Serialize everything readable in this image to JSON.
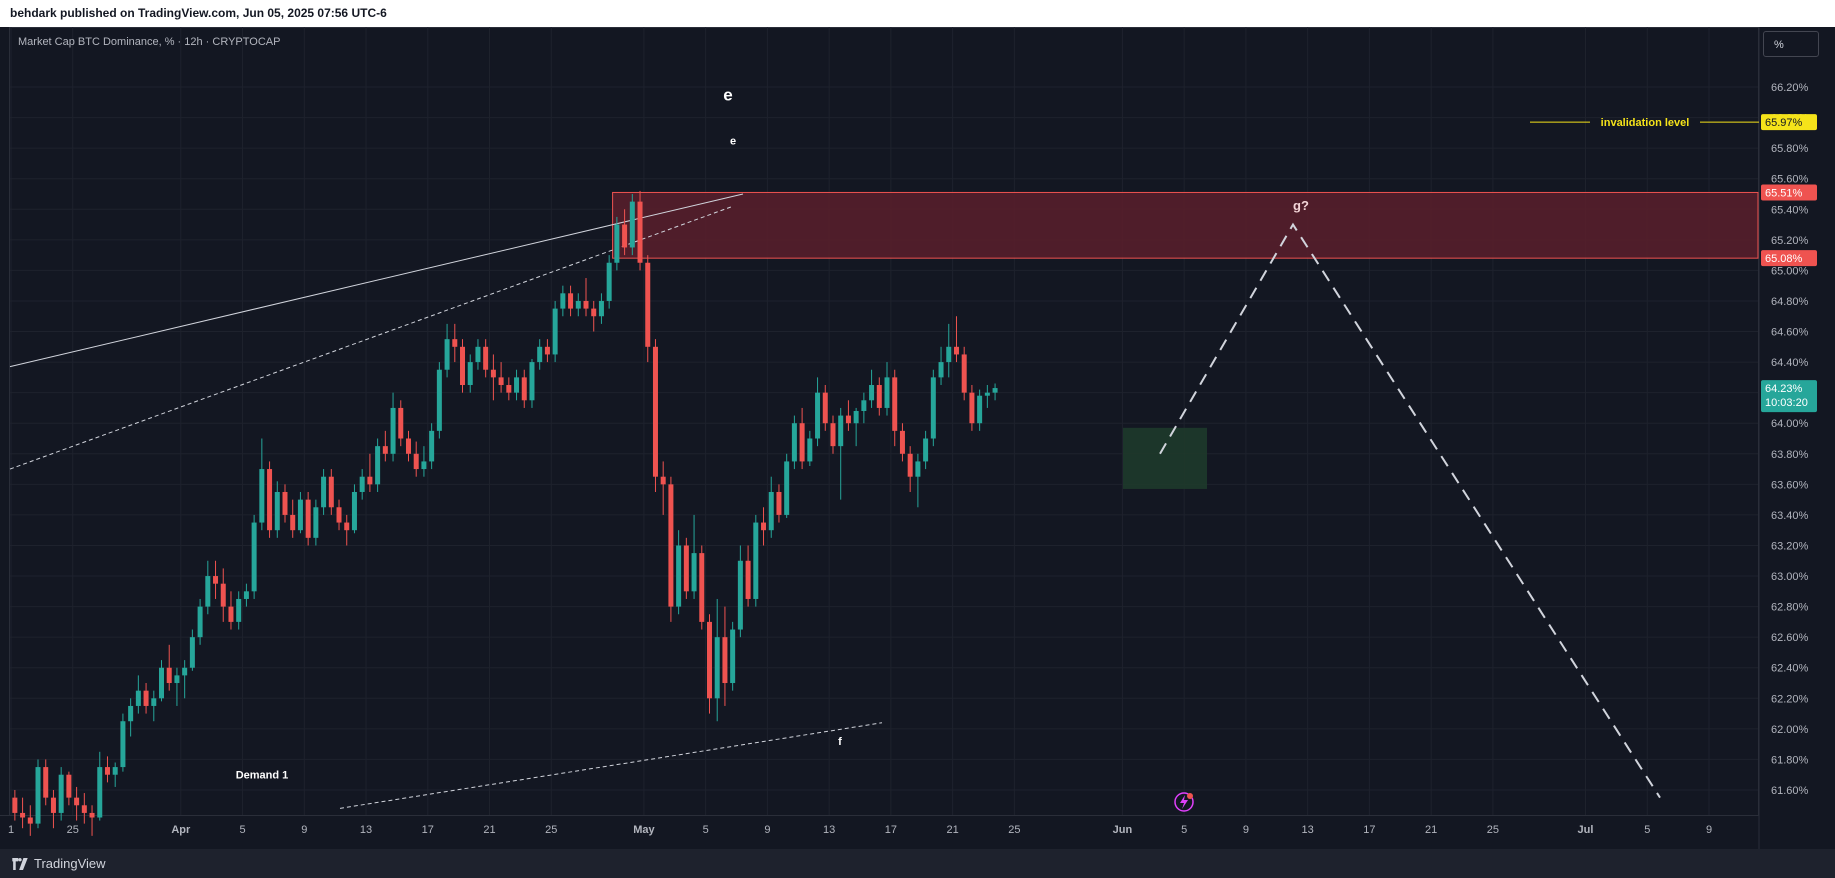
{
  "header": {
    "publish_text": "behdark published on TradingView.com, Jun 05, 2025 07:56 UTC-6"
  },
  "footer": {
    "brand": "TradingView",
    "logo_icon": "tradingview-logo-icon"
  },
  "toolbar": {
    "unit_button": "%"
  },
  "colors": {
    "background": "#131722",
    "up": "#26a69a",
    "down": "#ef5350",
    "supply_zone": "#5b1f2c",
    "demand_zone": "#1e3a2b",
    "invalidation": "#f5e31a",
    "grid": "#1e222d"
  },
  "chart_data": {
    "type": "candlestick",
    "title": "Market Cap BTC Dominance, % · 12h · CRYPTOCAP",
    "ylabel": "%",
    "ylim": [
      61.48,
      66.5
    ],
    "y_ticks": [
      "66.20%",
      "66.00%",
      "65.80%",
      "65.60%",
      "65.40%",
      "65.20%",
      "65.00%",
      "64.80%",
      "64.60%",
      "64.40%",
      "64.20%",
      "64.00%",
      "63.80%",
      "63.60%",
      "63.40%",
      "63.20%",
      "63.00%",
      "62.80%",
      "62.60%",
      "62.40%",
      "62.20%",
      "62.00%",
      "61.80%",
      "61.60%"
    ],
    "y_tick_values": [
      66.2,
      66.0,
      65.8,
      65.6,
      65.4,
      65.2,
      65.0,
      64.8,
      64.6,
      64.4,
      64.2,
      64.0,
      63.8,
      63.6,
      63.4,
      63.2,
      63.0,
      62.8,
      62.6,
      62.4,
      62.2,
      62.0,
      61.8,
      61.6
    ],
    "x_ticks": [
      {
        "label": "1",
        "date": "2025-03-21"
      },
      {
        "label": "25",
        "date": "2025-03-25"
      },
      {
        "label": "Apr",
        "date": "2025-04-01",
        "bold": true
      },
      {
        "label": "5",
        "date": "2025-04-05"
      },
      {
        "label": "9",
        "date": "2025-04-09"
      },
      {
        "label": "13",
        "date": "2025-04-13"
      },
      {
        "label": "17",
        "date": "2025-04-17"
      },
      {
        "label": "21",
        "date": "2025-04-21"
      },
      {
        "label": "25",
        "date": "2025-04-25"
      },
      {
        "label": "May",
        "date": "2025-05-01",
        "bold": true
      },
      {
        "label": "5",
        "date": "2025-05-05"
      },
      {
        "label": "9",
        "date": "2025-05-09"
      },
      {
        "label": "13",
        "date": "2025-05-13"
      },
      {
        "label": "17",
        "date": "2025-05-17"
      },
      {
        "label": "21",
        "date": "2025-05-21"
      },
      {
        "label": "25",
        "date": "2025-05-25"
      },
      {
        "label": "Jun",
        "date": "2025-06-01",
        "bold": true
      },
      {
        "label": "5",
        "date": "2025-06-05"
      },
      {
        "label": "9",
        "date": "2025-06-09"
      },
      {
        "label": "13",
        "date": "2025-06-13"
      },
      {
        "label": "17",
        "date": "2025-06-17"
      },
      {
        "label": "21",
        "date": "2025-06-21"
      },
      {
        "label": "25",
        "date": "2025-06-25"
      },
      {
        "label": "Jul",
        "date": "2025-07-01",
        "bold": true
      },
      {
        "label": "5",
        "date": "2025-07-05"
      },
      {
        "label": "9",
        "date": "2025-07-09"
      }
    ],
    "candles_ohlc": [
      [
        61.55,
        61.6,
        61.4,
        61.45
      ],
      [
        61.45,
        61.55,
        61.35,
        61.42
      ],
      [
        61.42,
        61.5,
        61.3,
        61.38
      ],
      [
        61.38,
        61.8,
        61.35,
        61.75
      ],
      [
        61.75,
        61.8,
        61.5,
        61.55
      ],
      [
        61.55,
        61.6,
        61.35,
        61.45
      ],
      [
        61.45,
        61.75,
        61.4,
        61.7
      ],
      [
        61.7,
        61.72,
        61.5,
        61.55
      ],
      [
        61.55,
        61.62,
        61.4,
        61.5
      ],
      [
        61.5,
        61.58,
        61.38,
        61.45
      ],
      [
        61.45,
        61.5,
        61.3,
        61.42
      ],
      [
        61.42,
        61.85,
        61.4,
        61.75
      ],
      [
        61.75,
        61.82,
        61.65,
        61.7
      ],
      [
        61.7,
        61.78,
        61.62,
        61.75
      ],
      [
        61.75,
        62.1,
        61.72,
        62.05
      ],
      [
        62.05,
        62.2,
        61.95,
        62.15
      ],
      [
        62.15,
        62.35,
        62.1,
        62.25
      ],
      [
        62.25,
        62.3,
        62.1,
        62.15
      ],
      [
        62.15,
        62.25,
        62.05,
        62.2
      ],
      [
        62.2,
        62.45,
        62.18,
        62.4
      ],
      [
        62.4,
        62.55,
        62.25,
        62.3
      ],
      [
        62.3,
        62.4,
        62.15,
        62.35
      ],
      [
        62.35,
        62.45,
        62.2,
        62.4
      ],
      [
        62.4,
        62.65,
        62.38,
        62.6
      ],
      [
        62.6,
        62.85,
        62.55,
        62.8
      ],
      [
        62.8,
        63.1,
        62.75,
        63.0
      ],
      [
        63.0,
        63.1,
        62.85,
        62.95
      ],
      [
        62.95,
        63.05,
        62.7,
        62.8
      ],
      [
        62.8,
        62.9,
        62.65,
        62.7
      ],
      [
        62.7,
        62.9,
        62.65,
        62.85
      ],
      [
        62.85,
        62.95,
        62.8,
        62.9
      ],
      [
        62.9,
        63.4,
        62.85,
        63.35
      ],
      [
        63.35,
        63.9,
        63.3,
        63.7
      ],
      [
        63.7,
        63.75,
        63.25,
        63.3
      ],
      [
        63.3,
        63.62,
        63.25,
        63.55
      ],
      [
        63.55,
        63.6,
        63.35,
        63.4
      ],
      [
        63.4,
        63.5,
        63.25,
        63.3
      ],
      [
        63.3,
        63.55,
        63.28,
        63.5
      ],
      [
        63.5,
        63.55,
        63.2,
        63.25
      ],
      [
        63.25,
        63.5,
        63.2,
        63.45
      ],
      [
        63.45,
        63.7,
        63.4,
        63.65
      ],
      [
        63.65,
        63.7,
        63.4,
        63.45
      ],
      [
        63.45,
        63.5,
        63.3,
        63.35
      ],
      [
        63.35,
        63.4,
        63.2,
        63.3
      ],
      [
        63.3,
        63.6,
        63.28,
        63.55
      ],
      [
        63.55,
        63.7,
        63.5,
        63.65
      ],
      [
        63.65,
        63.8,
        63.55,
        63.6
      ],
      [
        63.6,
        63.9,
        63.55,
        63.85
      ],
      [
        63.85,
        63.95,
        63.75,
        63.8
      ],
      [
        63.8,
        64.2,
        63.75,
        64.1
      ],
      [
        64.1,
        64.15,
        63.85,
        63.9
      ],
      [
        63.9,
        63.95,
        63.75,
        63.8
      ],
      [
        63.8,
        63.88,
        63.65,
        63.7
      ],
      [
        63.7,
        63.85,
        63.65,
        63.75
      ],
      [
        63.75,
        64.0,
        63.7,
        63.95
      ],
      [
        63.95,
        64.4,
        63.9,
        64.35
      ],
      [
        64.35,
        64.65,
        64.3,
        64.55
      ],
      [
        64.55,
        64.65,
        64.4,
        64.5
      ],
      [
        64.5,
        64.55,
        64.2,
        64.25
      ],
      [
        64.25,
        64.45,
        64.2,
        64.4
      ],
      [
        64.4,
        64.55,
        64.35,
        64.5
      ],
      [
        64.5,
        64.55,
        64.3,
        64.35
      ],
      [
        64.35,
        64.45,
        64.15,
        64.3
      ],
      [
        64.3,
        64.4,
        64.2,
        64.25
      ],
      [
        64.25,
        64.3,
        64.15,
        64.2
      ],
      [
        64.2,
        64.35,
        64.15,
        64.3
      ],
      [
        64.3,
        64.35,
        64.1,
        64.15
      ],
      [
        64.15,
        64.42,
        64.1,
        64.4
      ],
      [
        64.4,
        64.55,
        64.35,
        64.5
      ],
      [
        64.5,
        64.55,
        64.4,
        64.45
      ],
      [
        64.45,
        64.8,
        64.4,
        64.75
      ],
      [
        64.75,
        64.9,
        64.7,
        64.85
      ],
      [
        64.85,
        64.9,
        64.7,
        64.75
      ],
      [
        64.75,
        64.85,
        64.7,
        64.8
      ],
      [
        64.8,
        64.95,
        64.7,
        64.75
      ],
      [
        64.75,
        64.8,
        64.6,
        64.7
      ],
      [
        64.7,
        64.85,
        64.65,
        64.8
      ],
      [
        64.8,
        65.1,
        64.75,
        65.05
      ],
      [
        65.05,
        65.35,
        65.0,
        65.3
      ],
      [
        65.3,
        65.4,
        65.1,
        65.15
      ],
      [
        65.15,
        65.5,
        65.1,
        65.45
      ],
      [
        65.45,
        65.52,
        65.0,
        65.05
      ],
      [
        65.05,
        65.1,
        64.4,
        64.5
      ],
      [
        64.5,
        64.55,
        63.55,
        63.65
      ],
      [
        63.65,
        63.75,
        63.4,
        63.6
      ],
      [
        63.6,
        63.65,
        62.7,
        62.8
      ],
      [
        62.8,
        63.3,
        62.75,
        63.2
      ],
      [
        63.2,
        63.25,
        62.85,
        62.9
      ],
      [
        62.9,
        63.4,
        62.85,
        63.15
      ],
      [
        63.15,
        63.2,
        62.65,
        62.7
      ],
      [
        62.7,
        62.75,
        62.1,
        62.2
      ],
      [
        62.2,
        62.85,
        62.05,
        62.6
      ],
      [
        62.6,
        62.8,
        62.15,
        62.3
      ],
      [
        62.3,
        62.7,
        62.25,
        62.65
      ],
      [
        62.65,
        63.2,
        62.6,
        63.1
      ],
      [
        63.1,
        63.2,
        62.8,
        62.85
      ],
      [
        62.85,
        63.4,
        62.8,
        63.35
      ],
      [
        63.35,
        63.45,
        63.2,
        63.3
      ],
      [
        63.3,
        63.65,
        63.25,
        63.55
      ],
      [
        63.55,
        63.6,
        63.35,
        63.4
      ],
      [
        63.4,
        63.8,
        63.38,
        63.75
      ],
      [
        63.75,
        64.05,
        63.7,
        64.0
      ],
      [
        64.0,
        64.1,
        63.7,
        63.75
      ],
      [
        63.75,
        63.95,
        63.72,
        63.9
      ],
      [
        63.9,
        64.3,
        63.85,
        64.2
      ],
      [
        64.2,
        64.25,
        63.95,
        64.0
      ],
      [
        64.0,
        64.05,
        63.8,
        63.85
      ],
      [
        63.85,
        64.1,
        63.5,
        64.05
      ],
      [
        64.05,
        64.15,
        63.95,
        64.0
      ],
      [
        64.0,
        64.1,
        63.85,
        64.08
      ],
      [
        64.08,
        64.2,
        64.0,
        64.15
      ],
      [
        64.15,
        64.35,
        64.1,
        64.25
      ],
      [
        64.25,
        64.3,
        64.05,
        64.1
      ],
      [
        64.1,
        64.4,
        64.05,
        64.3
      ],
      [
        64.3,
        64.35,
        63.85,
        63.95
      ],
      [
        63.95,
        64.0,
        63.75,
        63.8
      ],
      [
        63.8,
        63.85,
        63.55,
        63.65
      ],
      [
        63.65,
        63.8,
        63.45,
        63.75
      ],
      [
        63.75,
        63.95,
        63.7,
        63.9
      ],
      [
        63.9,
        64.35,
        63.85,
        64.3
      ],
      [
        64.3,
        64.5,
        64.25,
        64.4
      ],
      [
        64.4,
        64.65,
        64.3,
        64.5
      ],
      [
        64.5,
        64.7,
        64.4,
        64.45
      ],
      [
        64.45,
        64.5,
        64.15,
        64.2
      ],
      [
        64.2,
        64.25,
        63.95,
        64.0
      ],
      [
        64.0,
        64.22,
        63.95,
        64.18
      ],
      [
        64.18,
        64.25,
        64.1,
        64.2
      ],
      [
        64.2,
        64.26,
        64.15,
        64.23
      ]
    ],
    "last_price": {
      "value": "64.23%",
      "countdown": "10:03:20",
      "level": 64.23
    },
    "supply_zone": {
      "top": 65.51,
      "bottom": 65.08,
      "top_label": "65.51%",
      "bottom_label": "65.08%"
    },
    "demand_zone": {
      "top": 63.97,
      "bottom": 63.57
    },
    "invalidation": {
      "level": 65.97,
      "label": "invalidation level",
      "price_label": "65.97%"
    },
    "wave_labels": [
      {
        "text": "e",
        "price": 66.15,
        "size": "large"
      },
      {
        "text": "e",
        "price": 65.85,
        "size": "small"
      },
      {
        "text": "g?",
        "price": 65.42
      },
      {
        "text": "f",
        "price": 61.92
      }
    ],
    "annotations": [
      {
        "text": "Demand 1",
        "price": 61.7
      }
    ],
    "projection_path": [
      63.8,
      65.3,
      61.55
    ],
    "trendlines": {
      "upper_solid": [
        64.37,
        65.5
      ],
      "upper_dashed": [
        63.7,
        65.42
      ],
      "lower_dashed": [
        61.48,
        62.04
      ]
    }
  }
}
